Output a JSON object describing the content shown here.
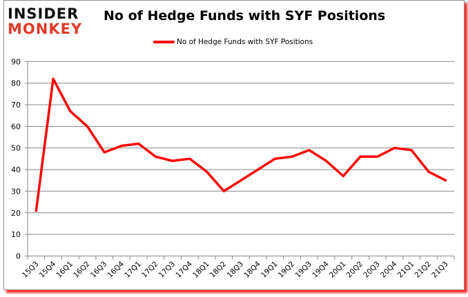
{
  "brand": {
    "logo_top": "INSIDER",
    "logo_bottom": "MONKEY"
  },
  "chart_data": {
    "type": "line",
    "title": "No of Hedge Funds with SYF Positions",
    "xlabel": "",
    "ylabel": "",
    "ylim": [
      0,
      90
    ],
    "yticks": [
      0,
      10,
      20,
      30,
      40,
      50,
      60,
      70,
      80,
      90
    ],
    "grid": true,
    "legend_position": "top",
    "categories": [
      "15Q3",
      "15Q4",
      "16Q1",
      "16Q2",
      "16Q3",
      "16Q4",
      "17Q1",
      "17Q2",
      "17Q3",
      "17Q4",
      "18Q1",
      "18Q2",
      "18Q3",
      "18Q4",
      "19Q1",
      "19Q2",
      "19Q3",
      "19Q4",
      "20Q1",
      "20Q2",
      "20Q3",
      "20Q4",
      "21Q1",
      "21Q2",
      "21Q3"
    ],
    "series": [
      {
        "name": "No of Hedge Funds with SYF Positions",
        "color": "#ff0000",
        "values": [
          21,
          82,
          67,
          60,
          48,
          51,
          52,
          46,
          44,
          45,
          39,
          30,
          35,
          40,
          45,
          46,
          49,
          44,
          37,
          46,
          46,
          50,
          49,
          39,
          35
        ]
      }
    ]
  },
  "colors": {
    "line": "#ff0000",
    "grid": "#868686",
    "frame_shadow": "#ff2a2a",
    "logo_accent": "#e03a2a"
  }
}
